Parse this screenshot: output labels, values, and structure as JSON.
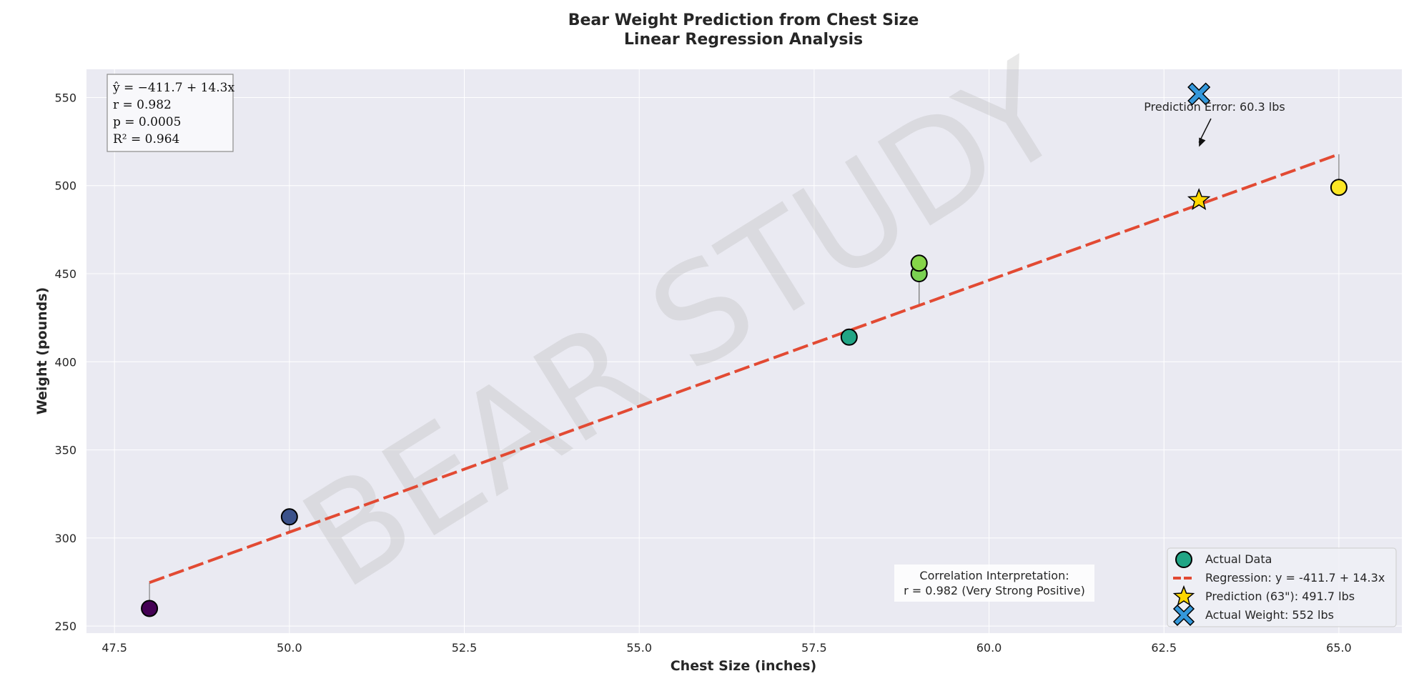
{
  "chart_data": {
    "type": "scatter",
    "title_line1": "Bear Weight Prediction from Chest Size",
    "title_line2": "Linear Regression Analysis",
    "xlabel": "Chest Size (inches)",
    "ylabel": "Weight (pounds)",
    "xlim": [
      47.1,
      65.9
    ],
    "ylim": [
      246,
      566
    ],
    "x_ticks": [
      47.5,
      50.0,
      52.5,
      55.0,
      57.5,
      60.0,
      62.5,
      65.0
    ],
    "x_tick_labels": [
      "47.5",
      "50.0",
      "52.5",
      "55.0",
      "57.5",
      "60.0",
      "62.5",
      "65.0"
    ],
    "y_ticks": [
      250,
      300,
      350,
      400,
      450,
      500,
      550
    ],
    "y_tick_labels": [
      "250",
      "300",
      "350",
      "400",
      "450",
      "500",
      "550"
    ],
    "grid": true,
    "points": [
      {
        "x": 48,
        "y": 260,
        "color": "#440154"
      },
      {
        "x": 50,
        "y": 312,
        "color": "#3b528b"
      },
      {
        "x": 58,
        "y": 414,
        "color": "#21a585"
      },
      {
        "x": 59,
        "y": 450,
        "color": "#7ad151"
      },
      {
        "x": 59,
        "y": 456,
        "color": "#86d549"
      },
      {
        "x": 65,
        "y": 499,
        "color": "#fde725"
      }
    ],
    "regression": {
      "intercept": -411.7,
      "slope": 14.3,
      "x_range": [
        48,
        65
      ],
      "color": "#e24a33"
    },
    "prediction_point": {
      "x": 63,
      "y": 491.7,
      "color": "#ffd700"
    },
    "actual_point": {
      "x": 63,
      "y": 552,
      "color": "#3498db"
    },
    "stats_box": {
      "line1": "ŷ = −411.7 + 14.3x",
      "line2": "r = 0.982",
      "line3": "p = 0.0005",
      "line4": "R² = 0.964"
    },
    "error_annotation": {
      "text": "Prediction Error: 60.3 lbs",
      "arrow_to": {
        "x": 63,
        "y": 522
      }
    },
    "correlation_box": {
      "line1": "Correlation Interpretation:",
      "line2": "r = 0.982 (Very Strong Positive)"
    },
    "legend": {
      "placement": "lower right",
      "entries": [
        {
          "label": "Actual Data",
          "marker": "circle",
          "color": "#21a585"
        },
        {
          "label": "Regression: y = -411.7 + 14.3x",
          "marker": "dashed-line",
          "color": "#e24a33"
        },
        {
          "label": "Prediction (63\"): 491.7 lbs",
          "marker": "star",
          "color": "#ffd700"
        },
        {
          "label": "Actual Weight: 552 lbs",
          "marker": "x",
          "color": "#3498db"
        }
      ]
    },
    "watermark": "BEAR STUDY",
    "colors": {
      "plot_background": "#eaeaf2",
      "grid": "#ffffff",
      "residual_line": "#808080"
    }
  }
}
